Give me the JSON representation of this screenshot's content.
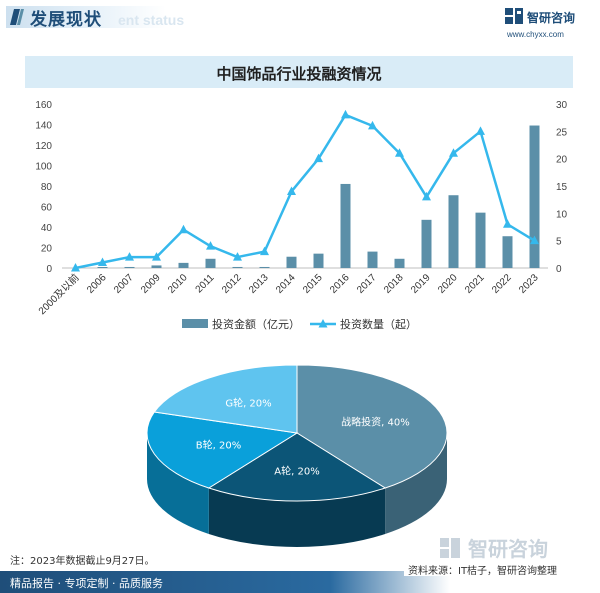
{
  "header": {
    "section_title": "发展现状",
    "section_subtitle": "ent status",
    "brand_name": "智研咨询",
    "brand_url": "www.chyxx.com"
  },
  "icons": {
    "tab_mark": "slash-mark-icon",
    "brand_logo": "chyxx-logo-icon"
  },
  "chart_data": [
    {
      "type": "bar+line",
      "title": "中国饰品行业投融资情况",
      "categories": [
        "2000及以前",
        "2006",
        "2007",
        "2009",
        "2010",
        "2011",
        "2012",
        "2013",
        "2014",
        "2015",
        "2016",
        "2017",
        "2018",
        "2019",
        "2020",
        "2021",
        "2022",
        "2023"
      ],
      "series": [
        {
          "name": "投资金额（亿元）",
          "type": "bar",
          "axis": "left",
          "color": "#5b8fa8",
          "values": [
            0,
            0.3,
            1,
            2.5,
            5,
            9,
            1,
            1,
            11,
            14,
            82,
            16,
            9,
            47,
            71,
            54,
            31,
            139
          ]
        },
        {
          "name": "投资数量（起）",
          "type": "line",
          "axis": "right",
          "color": "#35b8ec",
          "values": [
            0,
            1,
            2,
            2,
            7,
            4,
            2,
            3,
            14,
            20,
            28,
            26,
            21,
            13,
            21,
            25,
            8,
            5
          ]
        }
      ],
      "y_left": {
        "min": 0,
        "max": 160,
        "ticks": [
          0,
          20,
          40,
          60,
          80,
          100,
          120,
          140,
          160
        ]
      },
      "y_right": {
        "min": 0,
        "max": 30,
        "ticks": [
          0,
          5,
          10,
          15,
          20,
          25,
          30
        ]
      },
      "grid": false,
      "legend_position": "bottom"
    },
    {
      "type": "pie",
      "slices": [
        {
          "label": "战略投资, 40%",
          "value": 40,
          "color": "#5b8fa8",
          "side": "#3a6276"
        },
        {
          "label": "A轮, 20%",
          "value": 20,
          "color": "#0c5577",
          "side": "#073a52"
        },
        {
          "label": "B轮, 20%",
          "value": 20,
          "color": "#0aa0da",
          "side": "#076f98"
        },
        {
          "label": "G轮, 20%",
          "value": 20,
          "color": "#5fc4ef",
          "side": "#3e93b8"
        }
      ]
    }
  ],
  "footer": {
    "note": "注：2023年数据截止9月27日。",
    "source": "资料来源：IT桔子，智研咨询整理",
    "tagline": "精品报告 · 专项定制 · 品质服务",
    "logo_text": "智研咨询"
  }
}
